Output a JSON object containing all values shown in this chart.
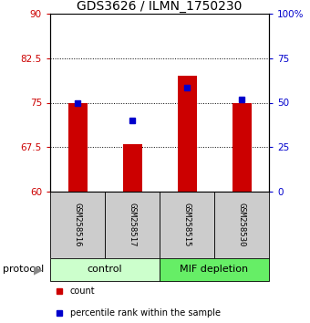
{
  "title": "GDS3626 / ILMN_1750230",
  "samples": [
    "GSM258516",
    "GSM258517",
    "GSM258515",
    "GSM258530"
  ],
  "bar_bottoms": [
    60,
    60,
    60,
    60
  ],
  "bar_tops": [
    75.0,
    68.0,
    79.5,
    75.0
  ],
  "percentile_values": [
    75.0,
    72.0,
    77.5,
    75.5
  ],
  "ylim_left": [
    60,
    90
  ],
  "ylim_right": [
    0,
    100
  ],
  "yticks_left": [
    60,
    67.5,
    75,
    82.5,
    90
  ],
  "yticks_right": [
    0,
    25,
    50,
    75,
    100
  ],
  "ytick_labels_left": [
    "60",
    "67.5",
    "75",
    "82.5",
    "90"
  ],
  "ytick_labels_right": [
    "0",
    "25",
    "50",
    "75",
    "100%"
  ],
  "bar_color": "#cc0000",
  "dot_color": "#0000cc",
  "group_labels": [
    "control",
    "MIF depletion"
  ],
  "group_ranges": [
    [
      0,
      2
    ],
    [
      2,
      4
    ]
  ],
  "group_colors_light": [
    "#ccffcc",
    "#66ee66"
  ],
  "sample_box_color": "#cccccc",
  "protocol_label": "protocol",
  "legend_items": [
    "count",
    "percentile rank within the sample"
  ],
  "background_color": "#ffffff",
  "title_fontsize": 10,
  "tick_fontsize": 7.5,
  "sample_fontsize": 6.5,
  "group_fontsize": 8,
  "legend_fontsize": 7
}
